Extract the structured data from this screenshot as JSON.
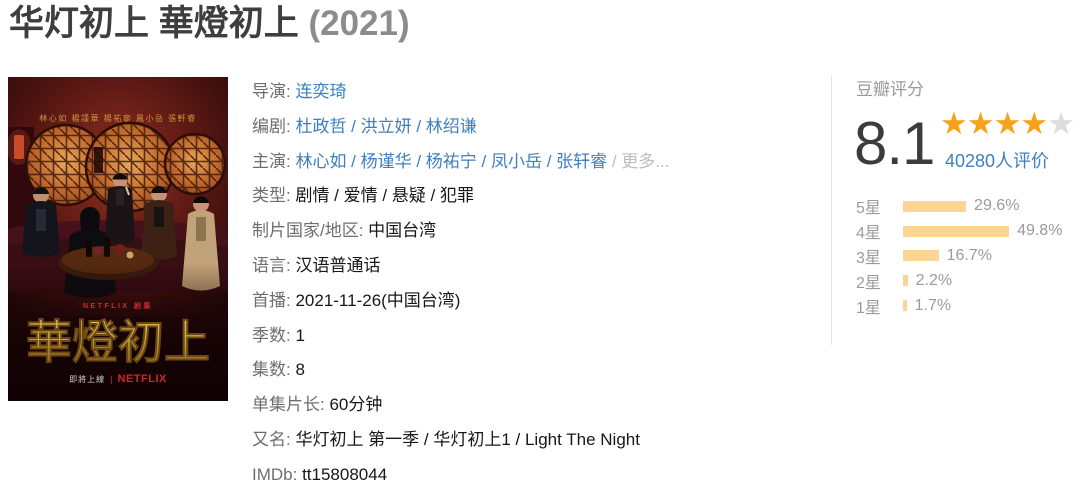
{
  "title": {
    "main": "华灯初上 華燈初上",
    "year": "(2021)"
  },
  "poster": {
    "actor_names": "林心如 楊謹華 楊祐寧 鳳小岳 張軒睿",
    "brand_line": "NETFLIX 剧集",
    "title": "華燈初上",
    "coming_soon": "即將上線",
    "separator": "|",
    "netflix_logo": "NETFLIX"
  },
  "info": {
    "rows": [
      {
        "label": "导演:",
        "segments": [
          {
            "t": "连奕琦",
            "s": "link"
          }
        ]
      },
      {
        "label": "编剧:",
        "segments": [
          {
            "t": "杜政哲",
            "s": "link"
          },
          {
            "t": " / ",
            "s": "link"
          },
          {
            "t": "洪立妍",
            "s": "link"
          },
          {
            "t": " / ",
            "s": "link"
          },
          {
            "t": "林绍谦",
            "s": "link"
          }
        ]
      },
      {
        "label": "主演:",
        "segments": [
          {
            "t": "林心如",
            "s": "link"
          },
          {
            "t": " / ",
            "s": "link"
          },
          {
            "t": "杨谨华",
            "s": "link"
          },
          {
            "t": " / ",
            "s": "link"
          },
          {
            "t": "杨祐宁",
            "s": "link"
          },
          {
            "t": " / ",
            "s": "link"
          },
          {
            "t": "凤小岳",
            "s": "link"
          },
          {
            "t": " / ",
            "s": "link"
          },
          {
            "t": "张轩睿",
            "s": "link"
          },
          {
            "t": " / ",
            "s": "muted"
          },
          {
            "t": "更多...",
            "s": "muted"
          }
        ]
      },
      {
        "label": "类型:",
        "segments": [
          {
            "t": "剧情 / 爱情 / 悬疑 / 犯罪",
            "s": "plain"
          }
        ]
      },
      {
        "label": "制片国家/地区:",
        "segments": [
          {
            "t": "中国台湾",
            "s": "plain"
          }
        ]
      },
      {
        "label": "语言:",
        "segments": [
          {
            "t": "汉语普通话",
            "s": "plain"
          }
        ]
      },
      {
        "label": "首播:",
        "segments": [
          {
            "t": "2021-11-26(中国台湾)",
            "s": "plain"
          }
        ]
      },
      {
        "label": "季数:",
        "segments": [
          {
            "t": "1",
            "s": "plain"
          }
        ]
      },
      {
        "label": "集数:",
        "segments": [
          {
            "t": "8",
            "s": "plain"
          }
        ]
      },
      {
        "label": "单集片长:",
        "segments": [
          {
            "t": "60分钟",
            "s": "plain"
          }
        ]
      },
      {
        "label": "又名:",
        "segments": [
          {
            "t": "华灯初上 第一季 / 华灯初上1 / Light The Night",
            "s": "plain"
          }
        ]
      },
      {
        "label": "IMDb:",
        "segments": [
          {
            "t": "tt15808044",
            "s": "plain"
          }
        ]
      }
    ]
  },
  "rating": {
    "header": "豆瓣评分",
    "score": "8.1",
    "stars_filled": 4,
    "stars_total": 5,
    "votes": "40280人评价",
    "distribution": [
      {
        "label": "5星",
        "pct": "29.6%",
        "value": 29.6
      },
      {
        "label": "4星",
        "pct": "49.8%",
        "value": 49.8
      },
      {
        "label": "3星",
        "pct": "16.7%",
        "value": 16.7
      },
      {
        "label": "2星",
        "pct": "2.2%",
        "value": 2.2
      },
      {
        "label": "1星",
        "pct": "1.7%",
        "value": 1.7
      }
    ],
    "colors": {
      "star_filled": "#f7a218",
      "star_empty": "#dcdcdc",
      "bar": "#ffd596",
      "link_blue": "#3d7fbf",
      "label_gray": "#9b9b9b",
      "netflix_red": "#d2252a",
      "poster_gold": "#c8963e"
    }
  }
}
